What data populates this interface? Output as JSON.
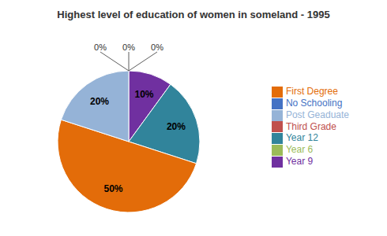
{
  "chart_data": {
    "type": "pie",
    "title": "Highest level of education of women in someland - 1995",
    "categories": [
      "No Schooling",
      "Third Grade",
      "Year 6",
      "Year 9",
      "Year 12",
      "First Degree",
      "Post Geaduate"
    ],
    "values": [
      0.001,
      0.001,
      0.001,
      10,
      20,
      50,
      20
    ],
    "value_labels": [
      "0%",
      "0%",
      "0%",
      "10%",
      "20%",
      "50%",
      "20%"
    ],
    "colors": [
      "#4472C4",
      "#C0504D",
      "#9BBB59",
      "#7030A0",
      "#31849B",
      "#E36C09",
      "#95B3D7"
    ],
    "data_labels": true,
    "legend": "right"
  }
}
